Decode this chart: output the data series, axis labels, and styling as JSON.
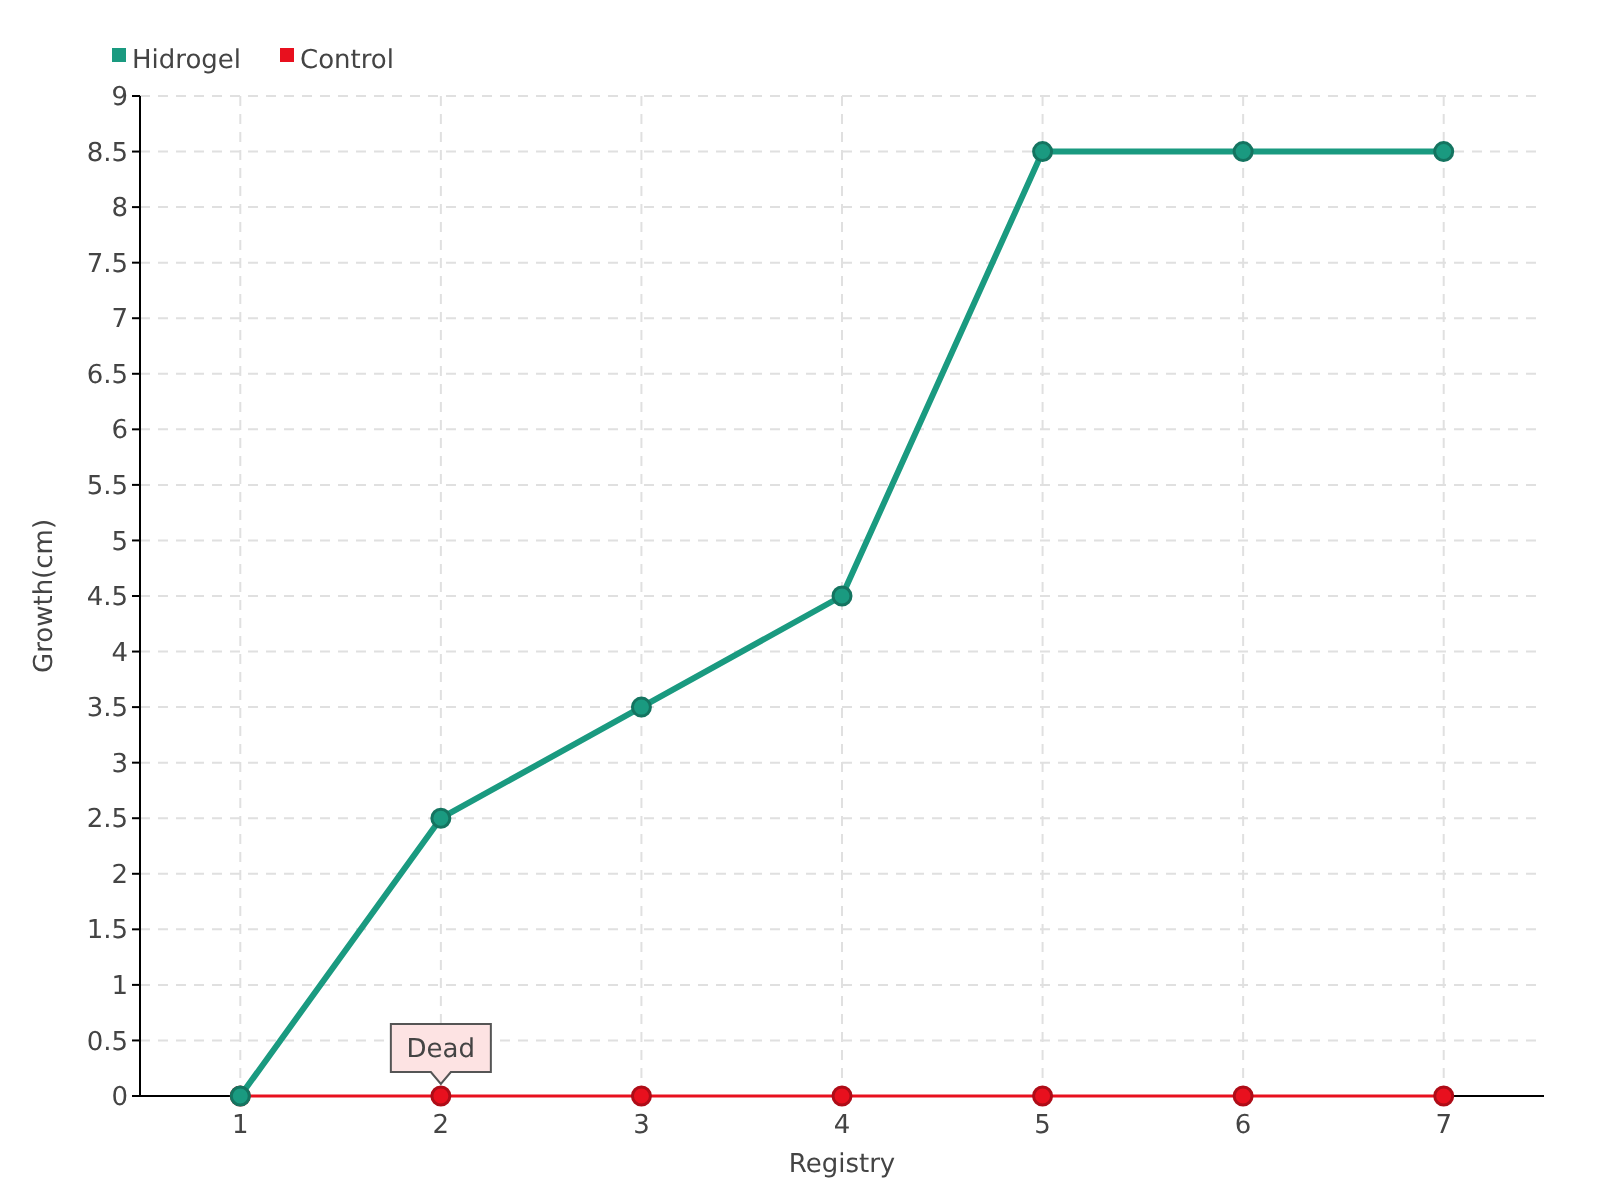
{
  "chart_data": {
    "type": "line",
    "xlabel": "Registry",
    "ylabel": "Growth(cm)",
    "categories": [
      "1",
      "2",
      "3",
      "4",
      "5",
      "6",
      "7"
    ],
    "series": [
      {
        "name": "Hidrogel",
        "color": "#1a9a80",
        "values": [
          0,
          2.5,
          3.5,
          4.5,
          8.5,
          8.5,
          8.5
        ]
      },
      {
        "name": "Control",
        "color": "#e8101e",
        "values": [
          0,
          0,
          0,
          0,
          0,
          0,
          0
        ]
      }
    ],
    "ylim": [
      0,
      9
    ],
    "yticks": [
      0,
      0.5,
      1,
      1.5,
      2,
      2.5,
      3,
      3.5,
      4,
      4.5,
      5,
      5.5,
      6,
      6.5,
      7,
      7.5,
      8,
      8.5,
      9
    ],
    "grid": true,
    "legend": "top left",
    "marker": "circle",
    "annotations": [
      {
        "text": "Dead",
        "x": "2",
        "y": 0
      }
    ]
  }
}
